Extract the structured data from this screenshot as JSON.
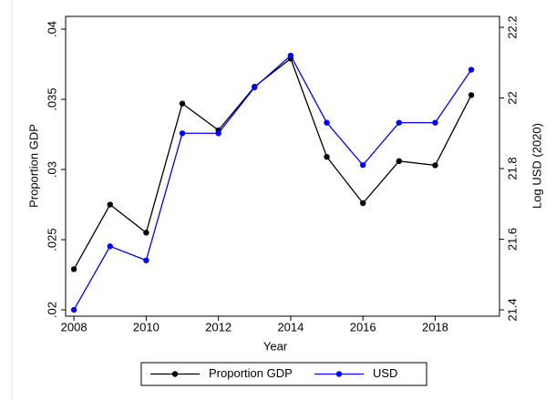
{
  "chart_data": {
    "type": "line",
    "xlabel": "Year",
    "ylabel": "Proportion GDP",
    "y2label": "Log USD (2020)",
    "x": [
      2008,
      2009,
      2010,
      2011,
      2012,
      2013,
      2014,
      2015,
      2016,
      2017,
      2018,
      2019
    ],
    "series": [
      {
        "name": "Proportion GDP",
        "color": "#000000",
        "values": [
          0.0229,
          0.0275,
          0.0255,
          0.0347,
          0.0328,
          0.0359,
          0.0379,
          0.0309,
          0.0276,
          0.0306,
          0.0303,
          0.0353
        ]
      },
      {
        "name": "USD",
        "color": "#0000ff",
        "axis": "y2",
        "values": [
          21.4,
          21.58,
          21.54,
          21.9,
          21.9,
          22.03,
          22.12,
          21.93,
          21.81,
          21.93,
          21.93,
          22.08
        ]
      }
    ],
    "xlim": [
      2007.77,
      2019.78
    ],
    "xticks": [
      2008,
      2010,
      2012,
      2014,
      2016,
      2018
    ],
    "ylim": [
      0.01955,
      0.04091
    ],
    "yticks": [
      {
        "value": 0.02,
        "label": ".02"
      },
      {
        "value": 0.025,
        "label": ".025"
      },
      {
        "value": 0.03,
        "label": ".03"
      },
      {
        "value": 0.035,
        "label": ".035"
      },
      {
        "value": 0.04,
        "label": ".04"
      }
    ],
    "y2lim": [
      21.382,
      22.231
    ],
    "y2ticks": [
      21.4,
      21.6,
      21.8,
      22,
      22.2
    ],
    "grid": false,
    "legend": "bottom"
  }
}
